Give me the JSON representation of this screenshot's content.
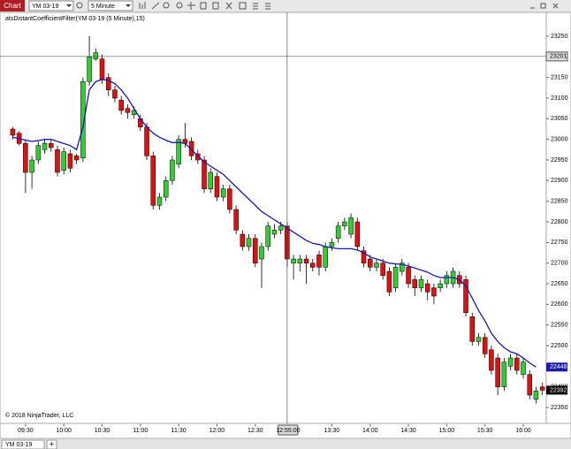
{
  "toolbar": {
    "tab": "Chart",
    "instrument": "YM 03-19",
    "interval": "5 Minute"
  },
  "tabs": {
    "active": "YM 03-19",
    "add": "+"
  },
  "chart_data": {
    "type": "candlestick",
    "title": "atsDistantCoefficientFilter(YM 03-19 (5 Minute),15)",
    "copyright": "© 2018 NinjaTrader, LLC",
    "x": [
      560,
      565,
      570,
      575,
      580,
      585,
      590,
      595,
      600,
      605,
      610,
      615,
      620,
      625,
      630,
      635,
      640,
      645,
      650,
      655,
      660,
      665,
      670,
      675,
      680,
      685,
      690,
      695,
      700,
      705,
      710,
      715,
      720,
      725,
      730,
      735,
      740,
      745,
      750,
      755,
      760,
      765,
      770,
      775,
      780,
      785,
      790,
      795,
      800,
      805,
      810,
      815,
      820,
      825,
      830,
      835,
      840,
      845,
      850,
      855,
      860,
      865,
      870,
      875,
      880,
      885,
      890,
      895,
      900,
      905,
      910,
      915,
      920,
      925,
      930,
      935,
      940,
      945,
      950,
      955,
      960,
      965,
      970,
      975
    ],
    "open": [
      23025,
      23015,
      22990,
      22920,
      22950,
      22975,
      22990,
      22975,
      22925,
      22965,
      22960,
      22955,
      23140,
      23195,
      23195,
      23150,
      23120,
      23095,
      23075,
      23060,
      23050,
      23030,
      22960,
      22840,
      22860,
      22900,
      22940,
      23000,
      22995,
      22965,
      22950,
      22880,
      22910,
      22860,
      22880,
      22830,
      22770,
      22740,
      22760,
      22710,
      22740,
      22770,
      22780,
      22790,
      22700,
      22700,
      22710,
      22700,
      22720,
      22690,
      22740,
      22760,
      22790,
      22770,
      22800,
      22730,
      22710,
      22690,
      22700,
      22680,
      22640,
      22680,
      22690,
      22660,
      22640,
      22650,
      22640,
      22640,
      22650,
      22650,
      22670,
      22660,
      22570,
      22510,
      22520,
      22490,
      22470,
      22400,
      22450,
      22470,
      22430,
      22430,
      22370,
      22400
    ],
    "high": [
      23030,
      23020,
      23000,
      22960,
      22995,
      23000,
      23000,
      22985,
      22980,
      22975,
      22965,
      23150,
      23250,
      23220,
      23205,
      23160,
      23130,
      23105,
      23085,
      23080,
      23060,
      23040,
      22970,
      22870,
      22910,
      22960,
      23010,
      23040,
      23005,
      22975,
      22960,
      22930,
      22920,
      22890,
      22890,
      22840,
      22780,
      22770,
      22770,
      22750,
      22800,
      22795,
      22800,
      22800,
      22720,
      22720,
      22720,
      22710,
      22730,
      22750,
      22760,
      22800,
      22810,
      22820,
      22810,
      22740,
      22720,
      22710,
      22710,
      22690,
      22700,
      22710,
      22700,
      22670,
      22670,
      22660,
      22650,
      22660,
      22680,
      22690,
      22680,
      22670,
      22580,
      22530,
      22530,
      22500,
      22480,
      22470,
      22480,
      22480,
      22470,
      22440,
      22400,
      22410
    ],
    "low": [
      23000,
      22985,
      22870,
      22880,
      22940,
      22965,
      22970,
      22910,
      22915,
      22920,
      22940,
      22945,
      23130,
      23190,
      23135,
      23105,
      23090,
      23060,
      23050,
      23050,
      23020,
      22950,
      22830,
      22830,
      22850,
      22890,
      22930,
      22980,
      22950,
      22940,
      22870,
      22870,
      22850,
      22850,
      22820,
      22770,
      22730,
      22730,
      22690,
      22640,
      22730,
      22760,
      22770,
      22690,
      22660,
      22680,
      22650,
      22680,
      22670,
      22680,
      22730,
      22750,
      22780,
      22760,
      22730,
      22690,
      22680,
      22680,
      22660,
      22620,
      22630,
      22670,
      22640,
      22620,
      22630,
      22610,
      22600,
      22630,
      22640,
      22640,
      22640,
      22570,
      22500,
      22500,
      22470,
      22430,
      22380,
      22390,
      22440,
      22430,
      22420,
      22370,
      22360,
      22380
    ],
    "close": [
      23010,
      22990,
      22920,
      22950,
      22985,
      22990,
      22980,
      22920,
      22970,
      22930,
      22950,
      23140,
      23200,
      23210,
      23145,
      23120,
      23100,
      23070,
      23065,
      23070,
      23030,
      22960,
      22840,
      22860,
      22900,
      22950,
      23000,
      22990,
      22960,
      22950,
      22880,
      22920,
      22860,
      22880,
      22830,
      22780,
      22740,
      22760,
      22700,
      22740,
      22790,
      22780,
      22790,
      22710,
      22710,
      22710,
      22700,
      22690,
      22690,
      22740,
      22750,
      22790,
      22800,
      22810,
      22740,
      22700,
      22690,
      22700,
      22670,
      22630,
      22690,
      22700,
      22650,
      22640,
      22660,
      22630,
      22620,
      22650,
      22670,
      22680,
      22650,
      22580,
      22510,
      22520,
      22480,
      22440,
      22400,
      22460,
      22470,
      22440,
      22460,
      22380,
      22390,
      22392
    ],
    "up_color": "#33cc33",
    "down_color": "#e01010",
    "indicator": {
      "color": "#1a1aa6",
      "values": [
        23005,
        23002,
        22998,
        22995,
        22997,
        23000,
        23000,
        22995,
        22990,
        22985,
        22975,
        23030,
        23120,
        23140,
        23145,
        23143,
        23135,
        23120,
        23100,
        23075,
        23050,
        23030,
        23015,
        23005,
        22998,
        22992,
        22993,
        22990,
        22975,
        22960,
        22945,
        22935,
        22925,
        22915,
        22900,
        22885,
        22870,
        22855,
        22840,
        22825,
        22815,
        22805,
        22795,
        22785,
        22775,
        22765,
        22755,
        22748,
        22745,
        22740,
        22737,
        22735,
        22735,
        22735,
        22732,
        22725,
        22715,
        22710,
        22705,
        22700,
        22698,
        22697,
        22693,
        22688,
        22683,
        22678,
        22670,
        22665,
        22665,
        22665,
        22660,
        22645,
        22615,
        22585,
        22560,
        22530,
        22510,
        22495,
        22485,
        22480,
        22470,
        22458,
        22448,
        null
      ]
    },
    "xlim": [
      550,
      978
    ],
    "ylim": [
      22310,
      23310
    ],
    "xticks": [
      {
        "value": 570,
        "label": "09:30"
      },
      {
        "value": 600,
        "label": "10:00"
      },
      {
        "value": 630,
        "label": "10:30"
      },
      {
        "value": 660,
        "label": "11:00"
      },
      {
        "value": 690,
        "label": "11:30"
      },
      {
        "value": 720,
        "label": "12:00"
      },
      {
        "value": 750,
        "label": "12:30"
      },
      {
        "value": 810,
        "label": "13:30"
      },
      {
        "value": 840,
        "label": "14:00"
      },
      {
        "value": 870,
        "label": "14:30"
      },
      {
        "value": 900,
        "label": "15:00"
      },
      {
        "value": 930,
        "label": "15:30"
      },
      {
        "value": 960,
        "label": "16:00"
      }
    ],
    "yticks": [
      22350,
      22400,
      22450,
      22500,
      22550,
      22600,
      22650,
      22700,
      22750,
      22800,
      22850,
      22900,
      22950,
      23000,
      23050,
      23100,
      23150,
      23200,
      23250
    ],
    "crosshair": {
      "x": {
        "value": 775,
        "label": "12:55:00"
      },
      "y": 23201
    }
  }
}
